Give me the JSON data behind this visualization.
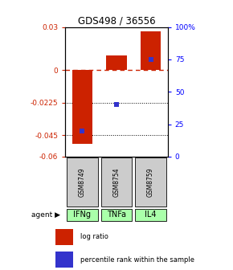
{
  "title": "GDS498 / 36556",
  "samples": [
    "GSM8749",
    "GSM8754",
    "GSM8759"
  ],
  "agents": [
    "IFNg",
    "TNFa",
    "IL4"
  ],
  "log_ratios": [
    -0.051,
    0.01,
    0.027
  ],
  "percentile_ranks": [
    20,
    40,
    75
  ],
  "bar_color": "#cc2200",
  "dot_color": "#3333cc",
  "ylim_left": [
    -0.06,
    0.03
  ],
  "ylim_right": [
    0,
    100
  ],
  "yticks_left": [
    0.03,
    0,
    -0.0225,
    -0.045,
    -0.06
  ],
  "ytick_labels_left": [
    "0.03",
    "0",
    "-0.0225",
    "-0.045",
    "-0.06"
  ],
  "yticks_right": [
    100,
    75,
    50,
    25,
    0
  ],
  "ytick_labels_right": [
    "100%",
    "75",
    "50",
    "25",
    "0"
  ],
  "gsm_color": "#cccccc",
  "agent_color": "#aaffaa",
  "bar_width": 0.6,
  "legend_items": [
    "log ratio",
    "percentile rank within the sample"
  ]
}
